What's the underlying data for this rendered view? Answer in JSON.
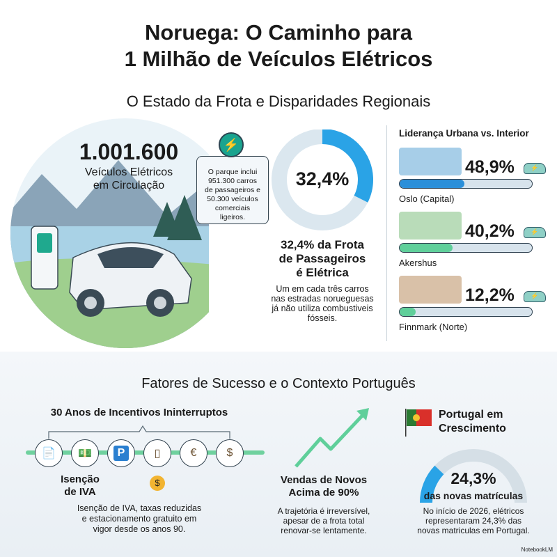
{
  "title": {
    "line1": "Noruega: O Caminho para",
    "line2": "1 Milhão de Veículos Elétricos"
  },
  "section1": {
    "title": "O Estado da Frota e Disparidades Regionais",
    "fleet": {
      "number": "1.001.600",
      "label1": "Veículos Elétricos",
      "label2": "em Circulação",
      "callout": [
        "O parque inclui",
        "951.300 carros",
        "de passageiros e",
        "50.300 veículos",
        "comerciais",
        "ligeiros."
      ]
    },
    "donut": {
      "value": 32.4,
      "label": "32,4%",
      "heading": [
        "32,4% da Frota",
        "de Passageiros",
        "é Elétrica"
      ],
      "text": [
        "Um em cada três carros",
        "nas estradas norueguesas",
        "já não utiliza combustiveis",
        "fósseis."
      ],
      "fill_color": "#2aa3e6",
      "track_color": "#dbe7ef"
    },
    "regions": {
      "title": "Liderança Urbana vs. Interior",
      "items": [
        {
          "name": "Oslo (Capital)",
          "value": 48.9,
          "label": "48,9%",
          "color": "#2b8fd9"
        },
        {
          "name": "Akershus",
          "value": 40.2,
          "label": "40,2%",
          "color": "#5fcf9a"
        },
        {
          "name": "Finnmark (Norte)",
          "value": 12.2,
          "label": "12,2%",
          "color": "#5fcf9a"
        }
      ]
    }
  },
  "section2": {
    "title": "Fatores de Sucesso e o Contexto Português",
    "incentives": {
      "title": "30 Anos de Incentivos Ininterruptos",
      "icons": [
        "document-check-icon",
        "banknote-icon",
        "parking-icon",
        "charger-icon",
        "euro-coins-icon",
        "money-bag-icon"
      ],
      "label": [
        "Isenção",
        "de IVA"
      ],
      "text": [
        "Isenção de IVA, taxas reduzidas",
        "e estacionamento gratuito em",
        "vigor desde os anos 90."
      ]
    },
    "sales": {
      "heading": [
        "Vendas de Novos",
        "Acima de 90%"
      ],
      "text": [
        "A trajetória é irreversível,",
        "apesar de a frota total",
        "renovar-se lentamente."
      ]
    },
    "portugal": {
      "title": [
        "Portugal em",
        "Crescimento"
      ],
      "value": 24.3,
      "label": "24,3%",
      "sublabel": "das novas matrículas",
      "text": [
        "No início de 2026, elétricos",
        "representaram 24,3% das",
        "novas matriculas em Portugal."
      ]
    }
  },
  "footer": {
    "brand": "NotebookLM"
  }
}
